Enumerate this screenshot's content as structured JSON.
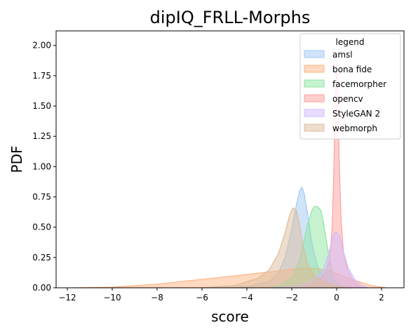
{
  "chart_data": {
    "type": "area",
    "title": "dipIQ_FRLL-Morphs",
    "xlabel": "score",
    "ylabel": "PDF",
    "xlim": [
      -12.5,
      3.0
    ],
    "ylim": [
      0,
      2.12
    ],
    "xticks": [
      -12,
      -10,
      -8,
      -6,
      -4,
      -2,
      0,
      2
    ],
    "xtick_labels": [
      "−12",
      "−10",
      "−8",
      "−6",
      "−4",
      "−2",
      "0",
      "2"
    ],
    "yticks": [
      0,
      0.25,
      0.5,
      0.75,
      1.0,
      1.25,
      1.5,
      1.75,
      2.0
    ],
    "ytick_labels": [
      "0.00",
      "0.25",
      "0.50",
      "0.75",
      "1.00",
      "1.25",
      "1.50",
      "1.75",
      "2.00"
    ],
    "grid": false,
    "legend": {
      "title": "legend",
      "placement": "top-right"
    },
    "series": [
      {
        "name": "amsl",
        "color": "#a1c9f4",
        "x": [
          -5,
          -4,
          -3,
          -2.6,
          -2.3,
          -2.0,
          -1.8,
          -1.65,
          -1.55,
          -1.45,
          -1.3,
          -1.15,
          -1.0,
          -0.8,
          -0.5,
          -0.2,
          0.2,
          0.6
        ],
        "y": [
          0,
          0.01,
          0.05,
          0.12,
          0.25,
          0.48,
          0.68,
          0.8,
          0.83,
          0.78,
          0.62,
          0.42,
          0.28,
          0.15,
          0.07,
          0.03,
          0.01,
          0
        ]
      },
      {
        "name": "bona fide",
        "color": "#ffb482",
        "x": [
          -11.8,
          -10,
          -8,
          -6,
          -5,
          -4,
          -3,
          -2.2,
          -1.6,
          -1.0,
          -0.5,
          0.0,
          0.5,
          1.0,
          1.5,
          2.0,
          2.2
        ],
        "y": [
          0,
          0.005,
          0.03,
          0.07,
          0.09,
          0.11,
          0.13,
          0.15,
          0.16,
          0.16,
          0.15,
          0.12,
          0.08,
          0.05,
          0.02,
          0.005,
          0
        ]
      },
      {
        "name": "facemorpher",
        "color": "#8de5a1",
        "x": [
          -3,
          -2.5,
          -2.0,
          -1.7,
          -1.5,
          -1.3,
          -1.1,
          -1.0,
          -0.85,
          -0.7,
          -0.6,
          -0.45,
          -0.3,
          -0.15,
          0.0,
          0.3
        ],
        "y": [
          0,
          0.02,
          0.08,
          0.2,
          0.35,
          0.52,
          0.64,
          0.67,
          0.67,
          0.64,
          0.55,
          0.38,
          0.22,
          0.1,
          0.04,
          0
        ]
      },
      {
        "name": "opencv",
        "color": "#ff9f9b",
        "x": [
          -1.6,
          -1.2,
          -0.8,
          -0.5,
          -0.3,
          -0.2,
          -0.12,
          -0.06,
          0.0,
          0.06,
          0.12,
          0.2,
          0.3,
          0.5,
          0.8,
          1.1
        ],
        "y": [
          0,
          0.02,
          0.06,
          0.12,
          0.25,
          0.5,
          1.0,
          1.55,
          1.85,
          1.55,
          1.0,
          0.55,
          0.3,
          0.14,
          0.04,
          0
        ]
      },
      {
        "name": "StyleGAN 2",
        "color": "#d0bbff",
        "x": [
          -3,
          -2.0,
          -1.5,
          -1.0,
          -0.6,
          -0.35,
          -0.2,
          -0.1,
          0.0,
          0.15,
          0.3,
          0.5,
          0.8,
          1.1,
          1.4
        ],
        "y": [
          0,
          0.01,
          0.03,
          0.07,
          0.15,
          0.28,
          0.4,
          0.45,
          0.46,
          0.42,
          0.3,
          0.17,
          0.07,
          0.02,
          0
        ]
      },
      {
        "name": "webmorph",
        "color": "#debb9b",
        "x": [
          -6,
          -4.5,
          -3.5,
          -3.0,
          -2.6,
          -2.3,
          -2.1,
          -1.95,
          -1.8,
          -1.65,
          -1.5,
          -1.3,
          -1.0,
          -0.5,
          0.0,
          0.5
        ],
        "y": [
          0,
          0.02,
          0.08,
          0.15,
          0.28,
          0.45,
          0.6,
          0.66,
          0.64,
          0.52,
          0.35,
          0.2,
          0.1,
          0.04,
          0.01,
          0
        ]
      }
    ]
  }
}
